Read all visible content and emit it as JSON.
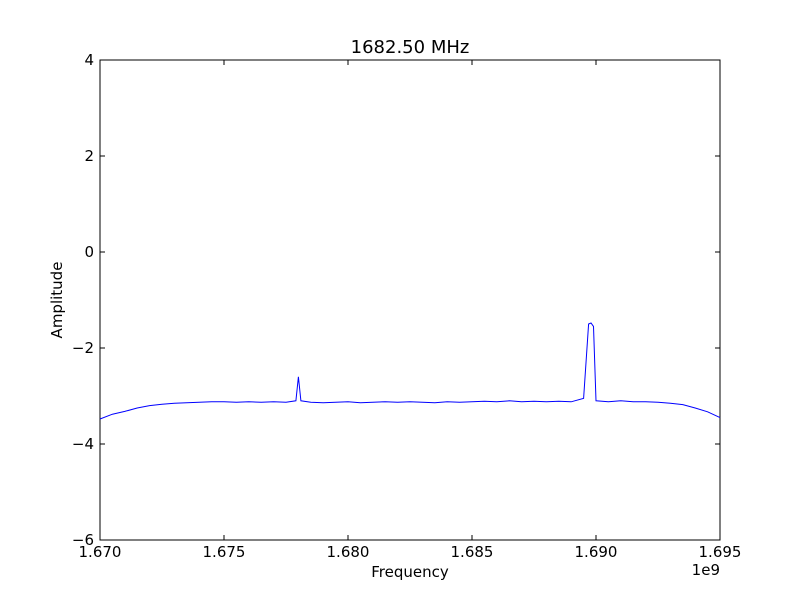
{
  "chart_data": {
    "type": "line",
    "title": "1682.50 MHz",
    "xlabel": "Frequency",
    "ylabel": "Amplitude",
    "x_offset_label": "1e9",
    "xlim": [
      1.67,
      1.695
    ],
    "ylim": [
      -6,
      4
    ],
    "x_tick_labels": [
      "1.670",
      "1.675",
      "1.680",
      "1.685",
      "1.690",
      "1.695"
    ],
    "y_tick_labels": [
      "−6",
      "−4",
      "−2",
      "0",
      "2",
      "4"
    ],
    "x_ticks": [
      1.67,
      1.675,
      1.68,
      1.685,
      1.69,
      1.695
    ],
    "y_ticks": [
      -6,
      -4,
      -2,
      0,
      2,
      4
    ],
    "grid": false,
    "line_color": "#0000ff",
    "series": [
      {
        "x": [
          1.67,
          1.6705,
          1.671,
          1.6715,
          1.672,
          1.6725,
          1.673,
          1.6735,
          1.674,
          1.6745,
          1.675,
          1.6755,
          1.676,
          1.6765,
          1.677,
          1.6775,
          1.6779,
          1.678,
          1.6781,
          1.6785,
          1.679,
          1.6795,
          1.68,
          1.6805,
          1.681,
          1.6815,
          1.682,
          1.6825,
          1.683,
          1.6835,
          1.684,
          1.6845,
          1.685,
          1.6855,
          1.686,
          1.6865,
          1.687,
          1.6875,
          1.688,
          1.6885,
          1.689,
          1.6895,
          1.6897,
          1.6898,
          1.6899,
          1.69,
          1.6905,
          1.691,
          1.6915,
          1.692,
          1.6925,
          1.693,
          1.6935,
          1.694,
          1.6945,
          1.695
        ],
        "y": [
          -3.48,
          -3.38,
          -3.32,
          -3.25,
          -3.2,
          -3.17,
          -3.15,
          -3.14,
          -3.13,
          -3.12,
          -3.12,
          -3.13,
          -3.12,
          -3.13,
          -3.12,
          -3.13,
          -3.1,
          -2.6,
          -3.1,
          -3.13,
          -3.14,
          -3.13,
          -3.12,
          -3.14,
          -3.13,
          -3.12,
          -3.13,
          -3.12,
          -3.13,
          -3.14,
          -3.12,
          -3.13,
          -3.12,
          -3.11,
          -3.12,
          -3.1,
          -3.12,
          -3.11,
          -3.12,
          -3.11,
          -3.12,
          -3.05,
          -1.5,
          -1.48,
          -1.55,
          -3.1,
          -3.12,
          -3.1,
          -3.12,
          -3.12,
          -3.13,
          -3.15,
          -3.18,
          -3.25,
          -3.33,
          -3.45
        ]
      }
    ]
  }
}
